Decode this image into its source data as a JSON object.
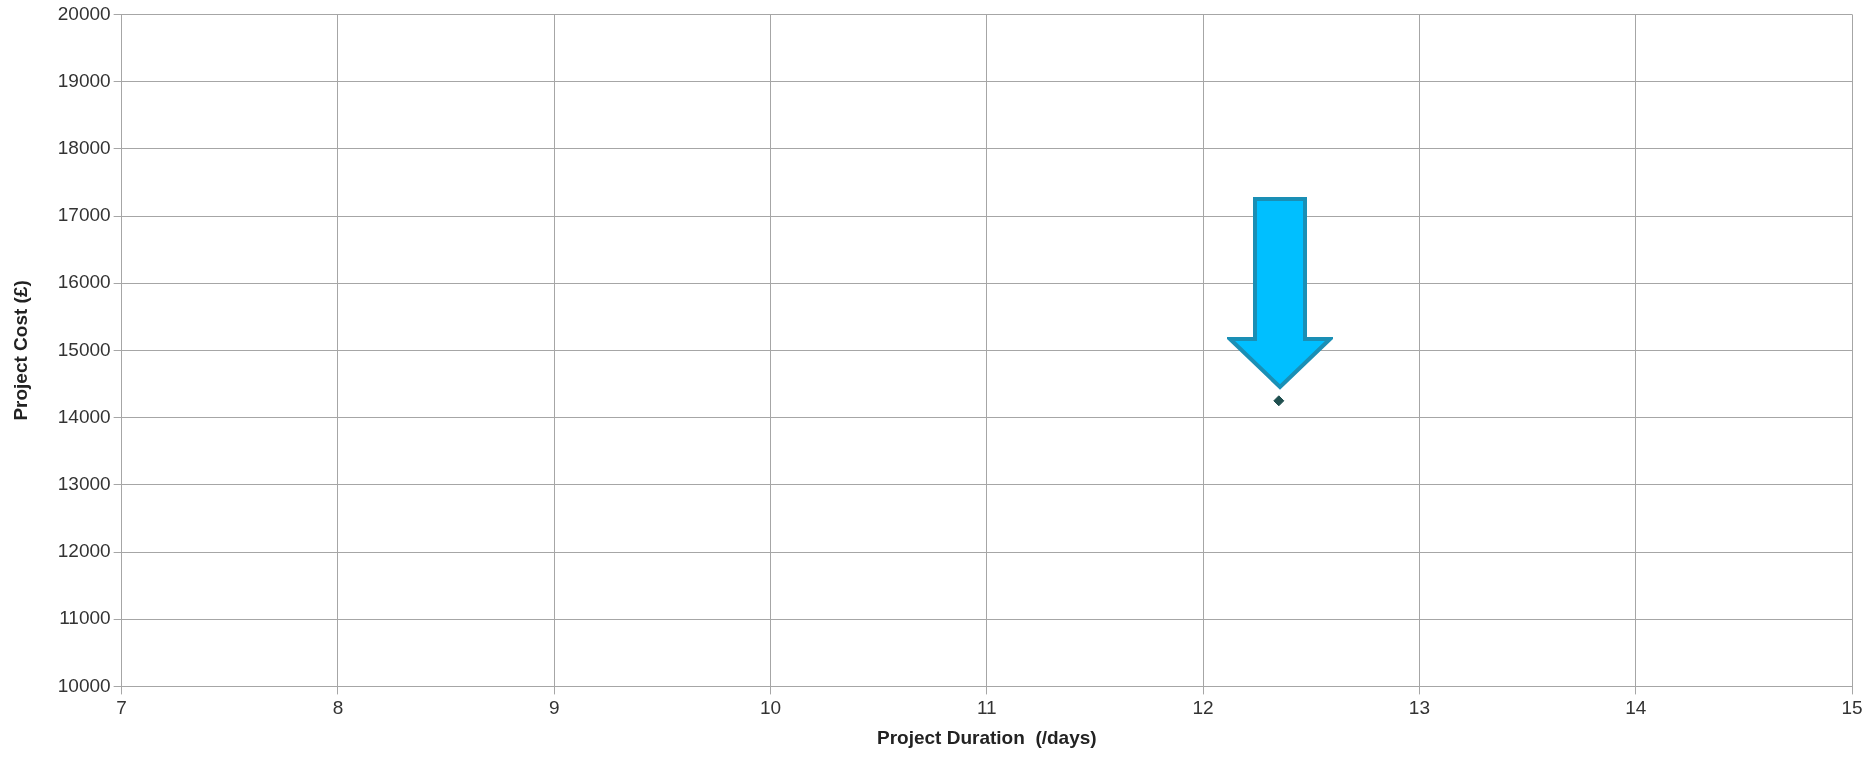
{
  "chart_data": {
    "type": "scatter",
    "xlabel": "Project Duration  (/days)",
    "ylabel": "Project Cost (£)",
    "x": [
      12.35
    ],
    "series": [
      {
        "color": "#1f4f4f",
        "values": [
          14250
        ]
      }
    ],
    "xlim": [
      7,
      15
    ],
    "xticks": [
      7,
      8,
      9,
      10,
      11,
      12,
      13,
      14,
      15
    ],
    "ylim": [
      10000,
      20000
    ],
    "yticks": [
      10000,
      11000,
      12000,
      13000,
      14000,
      15000,
      16000,
      17000,
      18000,
      19000,
      20000
    ],
    "grid": true,
    "legend": false,
    "marker": "diamond"
  }
}
